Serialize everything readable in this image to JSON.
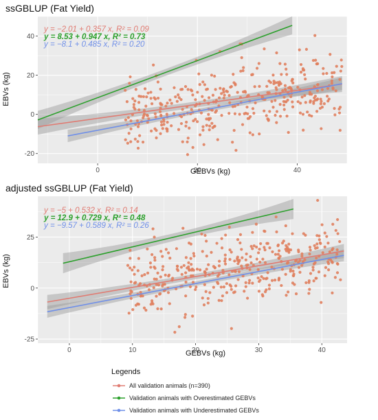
{
  "chart_data": [
    {
      "type": "scatter",
      "title": "ssGBLUP (Fat Yield)",
      "xlabel": "GEBVs (kg)",
      "ylabel": "EBVs (kg)",
      "xlim": [
        -12,
        50
      ],
      "ylim": [
        -25,
        50
      ],
      "xticks": [
        0,
        20,
        40
      ],
      "yticks": [
        -20,
        0,
        20,
        40
      ],
      "grid": true,
      "background": "#ebebeb",
      "equations": [
        {
          "text": "y = −2.01 + 0.357 x, R² = 0.09",
          "color": "#e07b72"
        },
        {
          "text": "y = 8.53 + 0.947 x, R² = 0.73",
          "color": "#2ca02c"
        },
        {
          "text": "y = −8.1 + 0.485 x, R² = 0.20",
          "color": "#6f8fe8"
        }
      ],
      "fits": [
        {
          "intercept": -2.01,
          "slope": 0.357,
          "x_range": [
            -12,
            49
          ],
          "color": "#e07b72",
          "band": 2.8
        },
        {
          "intercept": 8.53,
          "slope": 0.947,
          "x_range": [
            -12,
            39
          ],
          "color": "#2ca02c",
          "band": 3.2
        },
        {
          "intercept": -8.1,
          "slope": 0.485,
          "x_range": [
            -6,
            49
          ],
          "color": "#6f8fe8",
          "band": 2.2
        }
      ],
      "points_seed": 11,
      "points_count": 390
    },
    {
      "type": "scatter",
      "title": "adjusted ssGBLUP (Fat Yield)",
      "xlabel": "GEBVs (kg)",
      "ylabel": "EBVs (kg)",
      "xlim": [
        -5,
        44
      ],
      "ylim": [
        -27,
        45
      ],
      "xticks": [
        0,
        10,
        20,
        30,
        40
      ],
      "yticks": [
        -25,
        0,
        25
      ],
      "grid": true,
      "background": "#ebebeb",
      "equations": [
        {
          "text": "y = −5 + 0.532 x, R² = 0.14",
          "color": "#e07b72"
        },
        {
          "text": "y = 12.9 + 0.729 x, R² = 0.48",
          "color": "#2ca02c"
        },
        {
          "text": "y = −9.57 + 0.589 x, R² = 0.26",
          "color": "#6f8fe8"
        }
      ],
      "fits": [
        {
          "intercept": -5,
          "slope": 0.532,
          "x_range": [
            -3.5,
            43.5
          ],
          "color": "#e07b72",
          "band": 2.4
        },
        {
          "intercept": 12.9,
          "slope": 0.729,
          "x_range": [
            -1,
            35.5
          ],
          "color": "#2ca02c",
          "band": 3.4
        },
        {
          "intercept": -9.57,
          "slope": 0.589,
          "x_range": [
            -3.5,
            43.5
          ],
          "color": "#6f8fe8",
          "band": 2.0
        }
      ],
      "points_seed": 29,
      "points_count": 390
    }
  ],
  "legend": {
    "title": "Legends",
    "placement": "bottom",
    "items": [
      {
        "label": "All validation animals (n=390)",
        "color": "#e07b72"
      },
      {
        "label": "Validation animals with Overestimated GEBVs",
        "color": "#2ca02c"
      },
      {
        "label": "Validation animals with Underestimated GEBVs",
        "color": "#6f8fe8"
      }
    ]
  },
  "colors": {
    "point": "#e0805e",
    "grid": "#ffffff",
    "band": "#999999"
  }
}
